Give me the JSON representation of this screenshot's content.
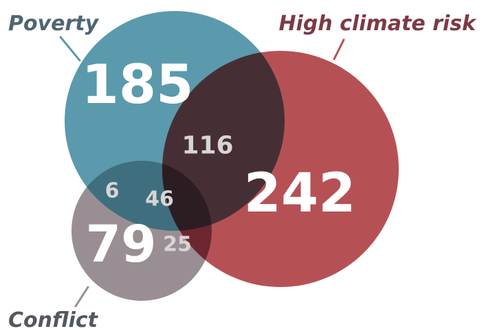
{
  "sets": {
    "poverty": {
      "label": "Poverty",
      "color": "#5a9aac",
      "text_color": "#4e6672"
    },
    "climate": {
      "label": "High climate risk",
      "color": "#b55155",
      "text_color": "#7d3a45"
    },
    "conflict": {
      "label": "Conflict",
      "color": "#998e94",
      "text_color": "#53575e"
    }
  },
  "regions": {
    "poverty_only": "185",
    "climate_only": "242",
    "conflict_only": "79",
    "poverty_climate": "116",
    "poverty_conflict": "6",
    "all_three": "46",
    "climate_conflict": "25"
  },
  "colors": {
    "poverty_climate_overlap": "#452f35",
    "all_three_overlap": "#2c1d23",
    "poverty_conflict_overlap": "#3f6f7e",
    "climate_conflict_overlap": "#6d2630"
  }
}
